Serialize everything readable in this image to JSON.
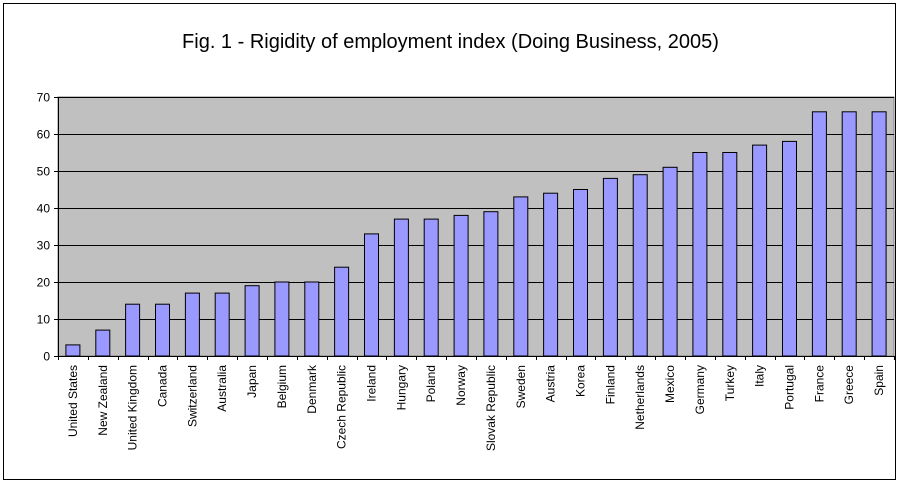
{
  "chart_data": {
    "type": "bar",
    "title": "Fig. 1 - Rigidity of employment index (Doing Business, 2005)",
    "xlabel": "",
    "ylabel": "",
    "ylim": [
      0,
      70
    ],
    "yticks": [
      0,
      10,
      20,
      30,
      40,
      50,
      60,
      70
    ],
    "grid": true,
    "legend": "none",
    "categories": [
      "United States",
      "New Zealand",
      "United Kingdom",
      "Canada",
      "Switzerland",
      "Australia",
      "Japan",
      "Belgium",
      "Denmark",
      "Czech Republic",
      "Ireland",
      "Hungary",
      "Poland",
      "Norway",
      "Slovak Republic",
      "Sweden",
      "Austria",
      "Korea",
      "Finland",
      "Netherlands",
      "Mexico",
      "Germany",
      "Turkey",
      "Italy",
      "Portugal",
      "France",
      "Greece",
      "Spain"
    ],
    "values": [
      3,
      7,
      14,
      14,
      17,
      17,
      19,
      20,
      20,
      24,
      33,
      37,
      37,
      38,
      39,
      43,
      44,
      45,
      48,
      49,
      51,
      55,
      55,
      57,
      58,
      66,
      66,
      66
    ],
    "colors": {
      "bar": "#9999ff",
      "bar_stroke": "#000000",
      "plot_background": "#c0c0c0",
      "gridline": "#000000"
    }
  }
}
